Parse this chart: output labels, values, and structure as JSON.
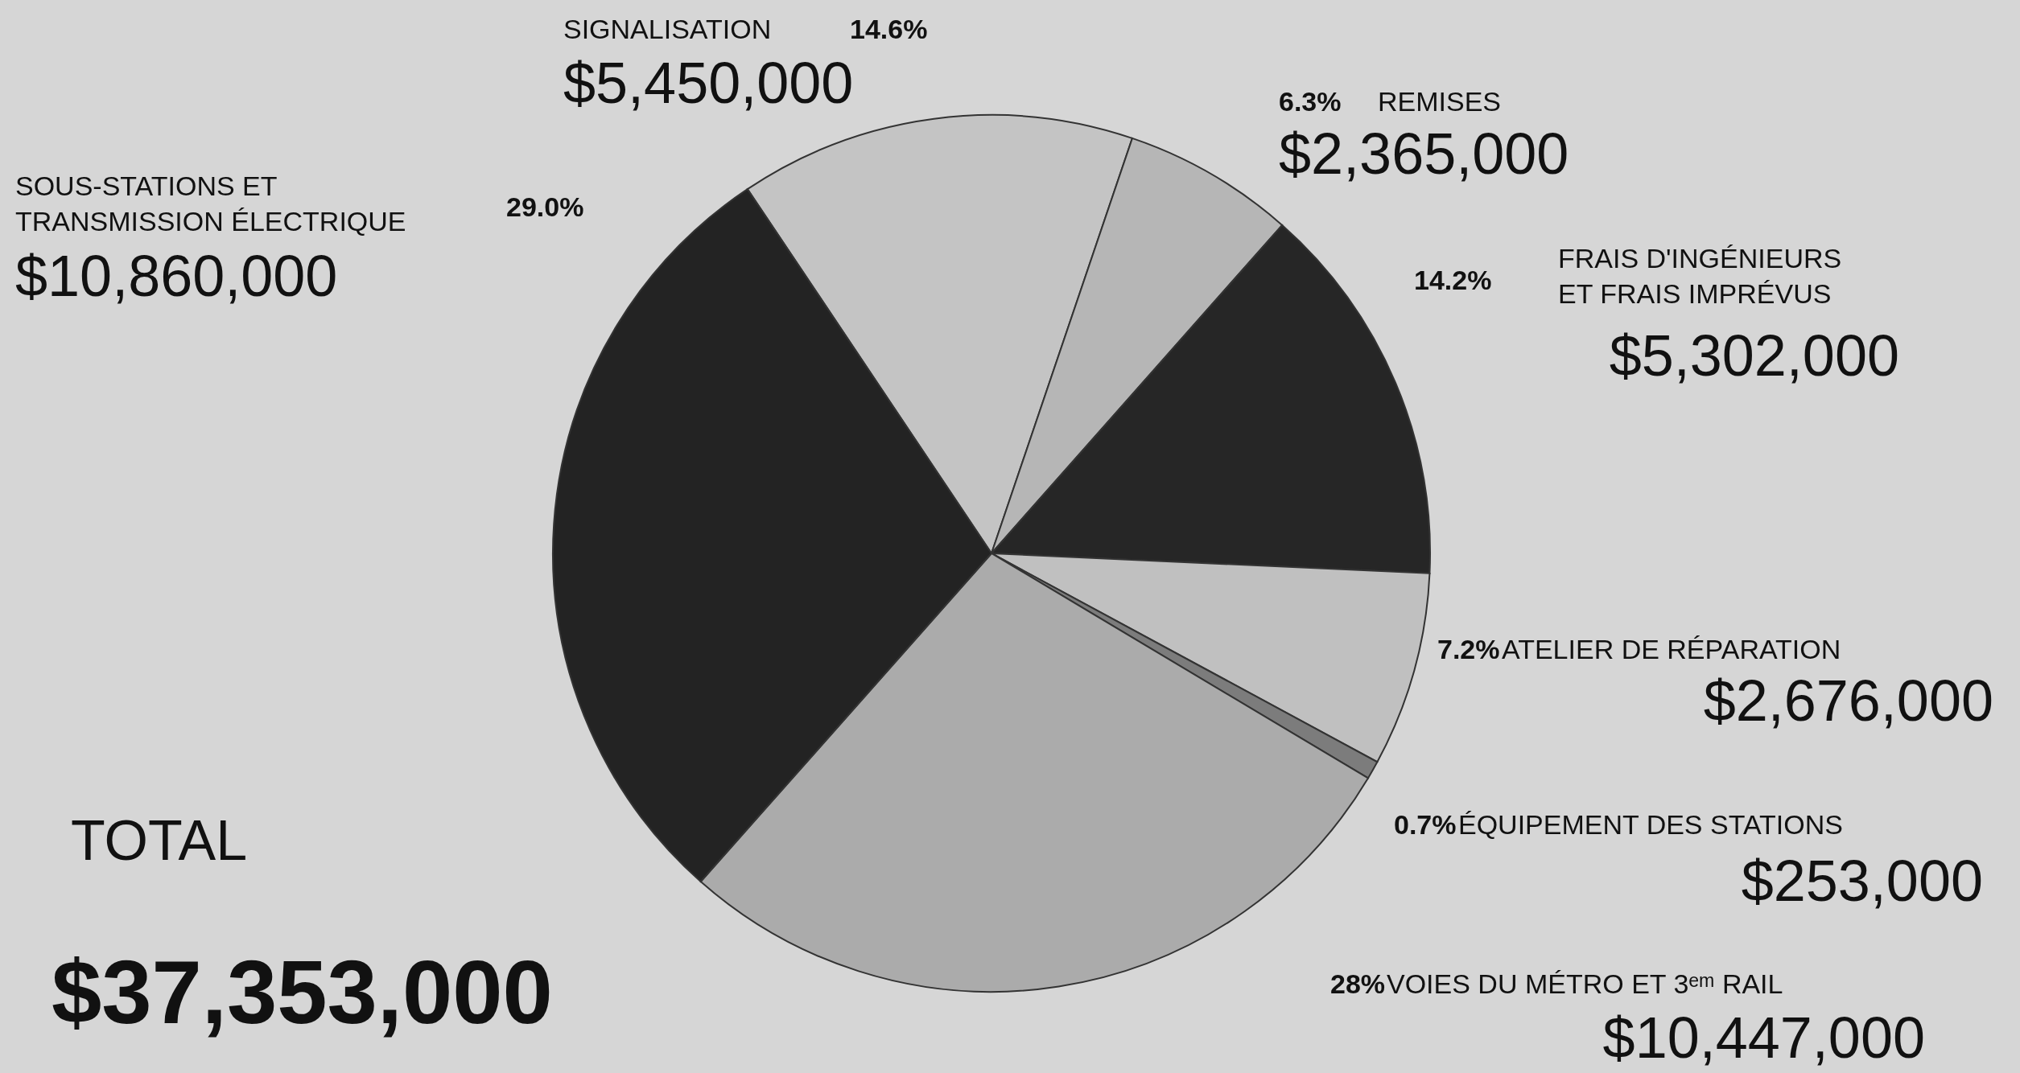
{
  "chart_data": {
    "type": "pie",
    "title": "TOTAL",
    "subtitle": "$37,353,000",
    "categories": [
      "SIGNALISATION",
      "REMISES",
      "FRAIS D'INGÉNIEURS\nET FRAIS IMPRÉVUS",
      "ATELIER DE RÉPARATION",
      "ÉQUIPEMENT  DES STATIONS",
      "VOIES DU MÉTRO  ET  3ᵉᵐ RAIL",
      "SOUS-STATIONS ET\nTRANSMISSION ÉLECTRIQUE"
    ],
    "values": [
      5450000,
      2365000,
      5302000,
      2676000,
      253000,
      10447000,
      10860000
    ],
    "value_labels": [
      "$5,450,000",
      "$2,365,000",
      "$5,302,000",
      "$2,676,000",
      "$253,000",
      "$10,447,000",
      "$10,860,000"
    ],
    "annotations": [
      "14.6%",
      "6.3%",
      "14.2%",
      "7.2%",
      "0.7%",
      "28%",
      "29.0%"
    ],
    "colors": [
      "#c4c4c4",
      "#b6b6b6",
      "#262626",
      "#c0c0c0",
      "#7c7c7c",
      "#ababab",
      "#232323"
    ]
  }
}
